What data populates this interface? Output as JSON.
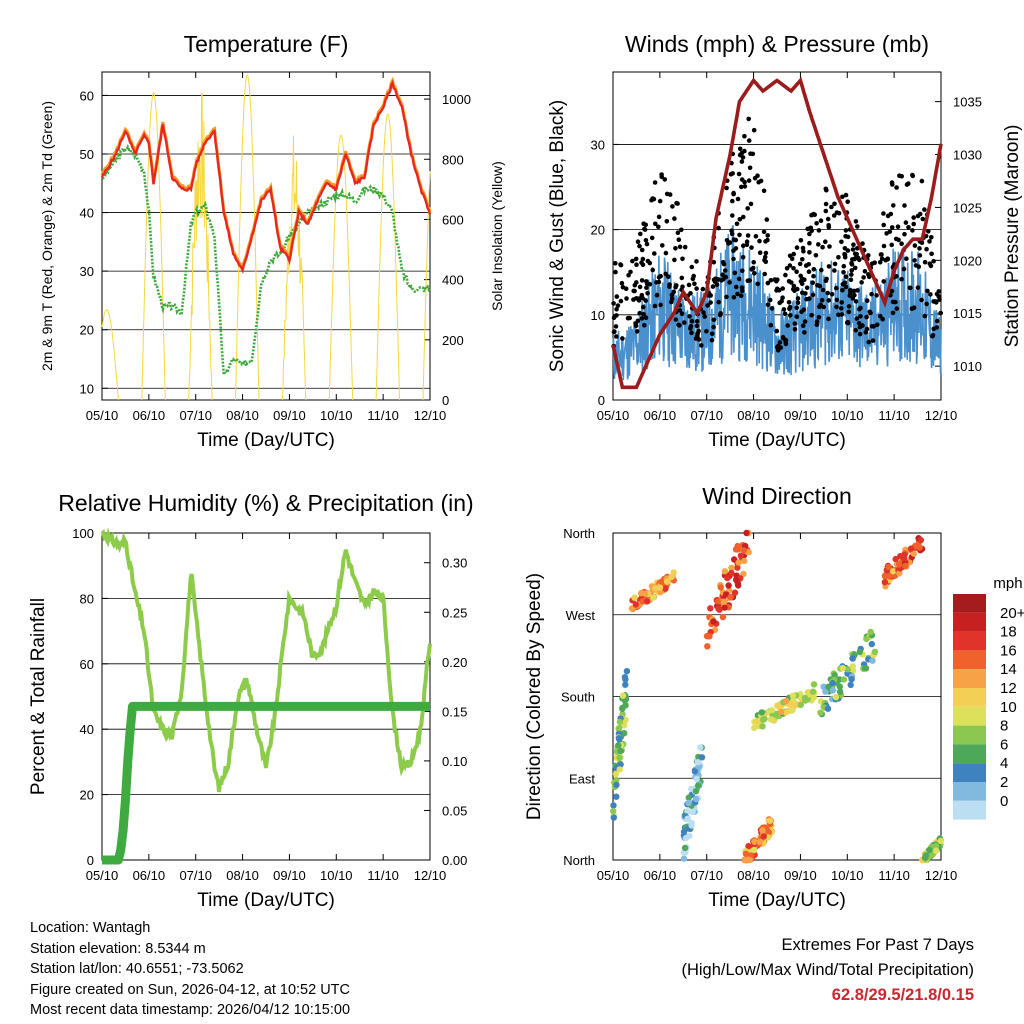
{
  "colors": {
    "t2m": "#e8281e",
    "t9m": "#f59a28",
    "dew": "#3ea83a",
    "solar": "#f5d840",
    "wind": "#4a90cc",
    "gust": "#000000",
    "pressure": "#9a1c1c",
    "rh": "#8ccc4a",
    "precip": "#3eaa40"
  },
  "x_axis": {
    "ticks": [
      "05/10",
      "06/10",
      "07/10",
      "08/10",
      "09/10",
      "10/10",
      "11/10",
      "12/10"
    ],
    "label": "Time (Day/UTC)"
  },
  "chart_data": [
    {
      "id": "temperature",
      "type": "line",
      "title": "Temperature (F)",
      "ylabel": "2m & 9m T (Red, Orange) & 2m Td (Green)",
      "y2label": "Solar Insolation (Yellow)",
      "ylim": [
        8,
        64
      ],
      "yticks": [
        10,
        20,
        30,
        40,
        50,
        60
      ],
      "y2lim": [
        0,
        1090
      ],
      "y2ticks": [
        0,
        200,
        400,
        600,
        800,
        1000
      ],
      "x": [
        0,
        0.3,
        0.5,
        0.7,
        0.9,
        1,
        1.1,
        1.3,
        1.5,
        1.7,
        1.9,
        2,
        2.2,
        2.4,
        2.6,
        2.8,
        3,
        3.2,
        3.4,
        3.6,
        3.8,
        4,
        4.2,
        4.4,
        4.6,
        4.8,
        5,
        5.2,
        5.4,
        5.6,
        5.8,
        6,
        6.2,
        6.4,
        6.6,
        6.8,
        7
      ],
      "series": [
        {
          "name": "2m T",
          "values": [
            46,
            50,
            54,
            50,
            53,
            52,
            45,
            55,
            46,
            44,
            44,
            48,
            52,
            54,
            40,
            33,
            30,
            36,
            42,
            44,
            34,
            32,
            40,
            38,
            42,
            45,
            44,
            50,
            45,
            46,
            55,
            58,
            62,
            58,
            50,
            44,
            40
          ]
        },
        {
          "name": "2m Td",
          "values": [
            46,
            49,
            51,
            50,
            47,
            40,
            29,
            24,
            24,
            23,
            38,
            40,
            41,
            36,
            12,
            15,
            14,
            15,
            28,
            32,
            33,
            36,
            38,
            40,
            41,
            42,
            43,
            43,
            42,
            44,
            44,
            43,
            40,
            30,
            27,
            27,
            27
          ]
        },
        {
          "name": "Solar Insolation",
          "daily_peaks": [
            300,
            1020,
            1060,
            1080,
            900,
            880,
            950,
            940
          ]
        }
      ]
    },
    {
      "id": "winds-pressure",
      "type": "scatter",
      "title": "Winds (mph) & Pressure (mb)",
      "ylabel": "Sonic Wind & Gust (Blue, Black)",
      "y2label": "Station Pressure (Maroon)",
      "ylim": [
        0,
        38.5
      ],
      "yticks": [
        0,
        10,
        20,
        30
      ],
      "y2lim": [
        1006.8,
        1037.8
      ],
      "y2ticks": [
        1010,
        1015,
        1020,
        1025,
        1030,
        1035
      ],
      "x": [
        0,
        0.5,
        1,
        1.5,
        2,
        2.5,
        3,
        3.5,
        4,
        4.5,
        5,
        5.5,
        6,
        6.5,
        7
      ],
      "series": [
        {
          "name": "Sonic Wind",
          "values": [
            6,
            8,
            14,
            10,
            10,
            16,
            14,
            8,
            10,
            13,
            12,
            10,
            14,
            14,
            7
          ]
        },
        {
          "name": "Gust",
          "values": [
            14,
            15,
            24,
            18,
            12,
            26,
            28,
            12,
            16,
            21,
            20,
            14,
            22,
            24,
            12
          ]
        },
        {
          "name": "Station Pressure",
          "x": [
            0,
            0.2,
            0.5,
            1,
            1.3,
            1.5,
            1.8,
            2,
            2.2,
            2.5,
            2.7,
            3,
            3.2,
            3.5,
            3.8,
            4,
            4.2,
            4.5,
            4.8,
            5,
            5.3,
            5.5,
            5.6,
            5.8,
            6,
            6.2,
            6.4,
            6.6,
            6.8,
            7
          ],
          "values": [
            1012,
            1008,
            1008,
            1013,
            1015,
            1017,
            1015,
            1017,
            1024,
            1030,
            1035,
            1037,
            1036,
            1037,
            1036,
            1037,
            1034,
            1030,
            1026,
            1024,
            1021,
            1019,
            1018,
            1016,
            1019,
            1021,
            1022,
            1022,
            1026,
            1031
          ]
        }
      ]
    },
    {
      "id": "rh-precip",
      "type": "line",
      "title": "Relative Humidity (%) & Precipitation (in)",
      "ylabel": "Percent & Total Rainfall",
      "ylim": [
        0,
        100
      ],
      "yticks": [
        0,
        20,
        40,
        60,
        80,
        100
      ],
      "y2lim": [
        0,
        0.33
      ],
      "y2ticks": [
        "0.00",
        "0.05",
        "0.10",
        "0.15",
        "0.20",
        "0.25",
        "0.30"
      ],
      "x": [
        0,
        0.2,
        0.4,
        0.5,
        0.7,
        0.9,
        1,
        1.1,
        1.3,
        1.5,
        1.7,
        1.9,
        2,
        2.2,
        2.4,
        2.5,
        2.7,
        2.9,
        3.1,
        3.3,
        3.5,
        3.7,
        3.9,
        4,
        4.3,
        4.5,
        4.7,
        5,
        5.2,
        5.4,
        5.6,
        5.8,
        6,
        6.2,
        6.4,
        6.6,
        6.8,
        7
      ],
      "series": [
        {
          "name": "Relative Humidity",
          "values": [
            100,
            98,
            96,
            98,
            82,
            70,
            57,
            45,
            40,
            38,
            52,
            88,
            75,
            50,
            28,
            22,
            30,
            50,
            55,
            40,
            28,
            45,
            70,
            80,
            75,
            62,
            65,
            78,
            95,
            85,
            78,
            82,
            80,
            45,
            28,
            30,
            40,
            67
          ]
        },
        {
          "name": "Total Precipitation",
          "x": [
            0,
            0.35,
            0.4,
            0.45,
            0.5,
            0.55,
            0.6,
            0.65,
            7
          ],
          "values": [
            0,
            0,
            0.01,
            0.03,
            0.06,
            0.1,
            0.13,
            0.155,
            0.155
          ]
        }
      ]
    },
    {
      "id": "wind-direction",
      "type": "scatter",
      "title": "Wind Direction",
      "ylabel": "Direction (Colored By Speed)",
      "yticks": [
        "North",
        "East",
        "South",
        "West",
        "North"
      ],
      "ylim": [
        0,
        360
      ],
      "legend": {
        "title": "mph",
        "labels": [
          "20+",
          "18",
          "16",
          "14",
          "12",
          "10",
          "8",
          "6",
          "4",
          "2",
          "0"
        ],
        "colors": [
          "#a51c1c",
          "#c72020",
          "#e0342a",
          "#f0622c",
          "#f8a248",
          "#f3cf55",
          "#dce05a",
          "#8cc850",
          "#4ea85a",
          "#3e82bf",
          "#82badf",
          "#bcdef3"
        ]
      },
      "clusters": [
        {
          "x_start": 0,
          "x_end": 0.3,
          "dir_from": 60,
          "dir_to": 190,
          "speed": 7
        },
        {
          "x_start": 0.4,
          "x_end": 1.3,
          "dir_from": 280,
          "dir_to": 310,
          "speed": 14
        },
        {
          "x_start": 1.5,
          "x_end": 1.9,
          "dir_from": 20,
          "dir_to": 110,
          "speed": 3
        },
        {
          "x_start": 2,
          "x_end": 2.9,
          "dir_from": 250,
          "dir_to": 350,
          "speed": 17
        },
        {
          "x_start": 2.8,
          "x_end": 3.4,
          "dir_from": 0,
          "dir_to": 40,
          "speed": 14
        },
        {
          "x_start": 3,
          "x_end": 4.3,
          "dir_from": 150,
          "dir_to": 185,
          "speed": 10
        },
        {
          "x_start": 4.4,
          "x_end": 5.6,
          "dir_from": 170,
          "dir_to": 240,
          "speed": 6
        },
        {
          "x_start": 5.8,
          "x_end": 6.6,
          "dir_from": 310,
          "dir_to": 350,
          "speed": 16
        },
        {
          "x_start": 6.6,
          "x_end": 7,
          "dir_from": 0,
          "dir_to": 20,
          "speed": 9
        }
      ]
    }
  ],
  "info": {
    "location": "Location: Wantagh",
    "elevation": "Station elevation: 8.5344 m",
    "latlon": "Station lat/lon: 40.6551; -73.5062",
    "created": "Figure created on Sun, 2026-04-12, at 10:52 UTC",
    "recent": "Most recent data timestamp: 2026/04/12 10:15:00"
  },
  "extremes": {
    "title": "Extremes For Past 7 Days",
    "subtitle": "(High/Low/Max Wind/Total Precipitation)",
    "values": "62.8/29.5/21.8/0.15"
  }
}
